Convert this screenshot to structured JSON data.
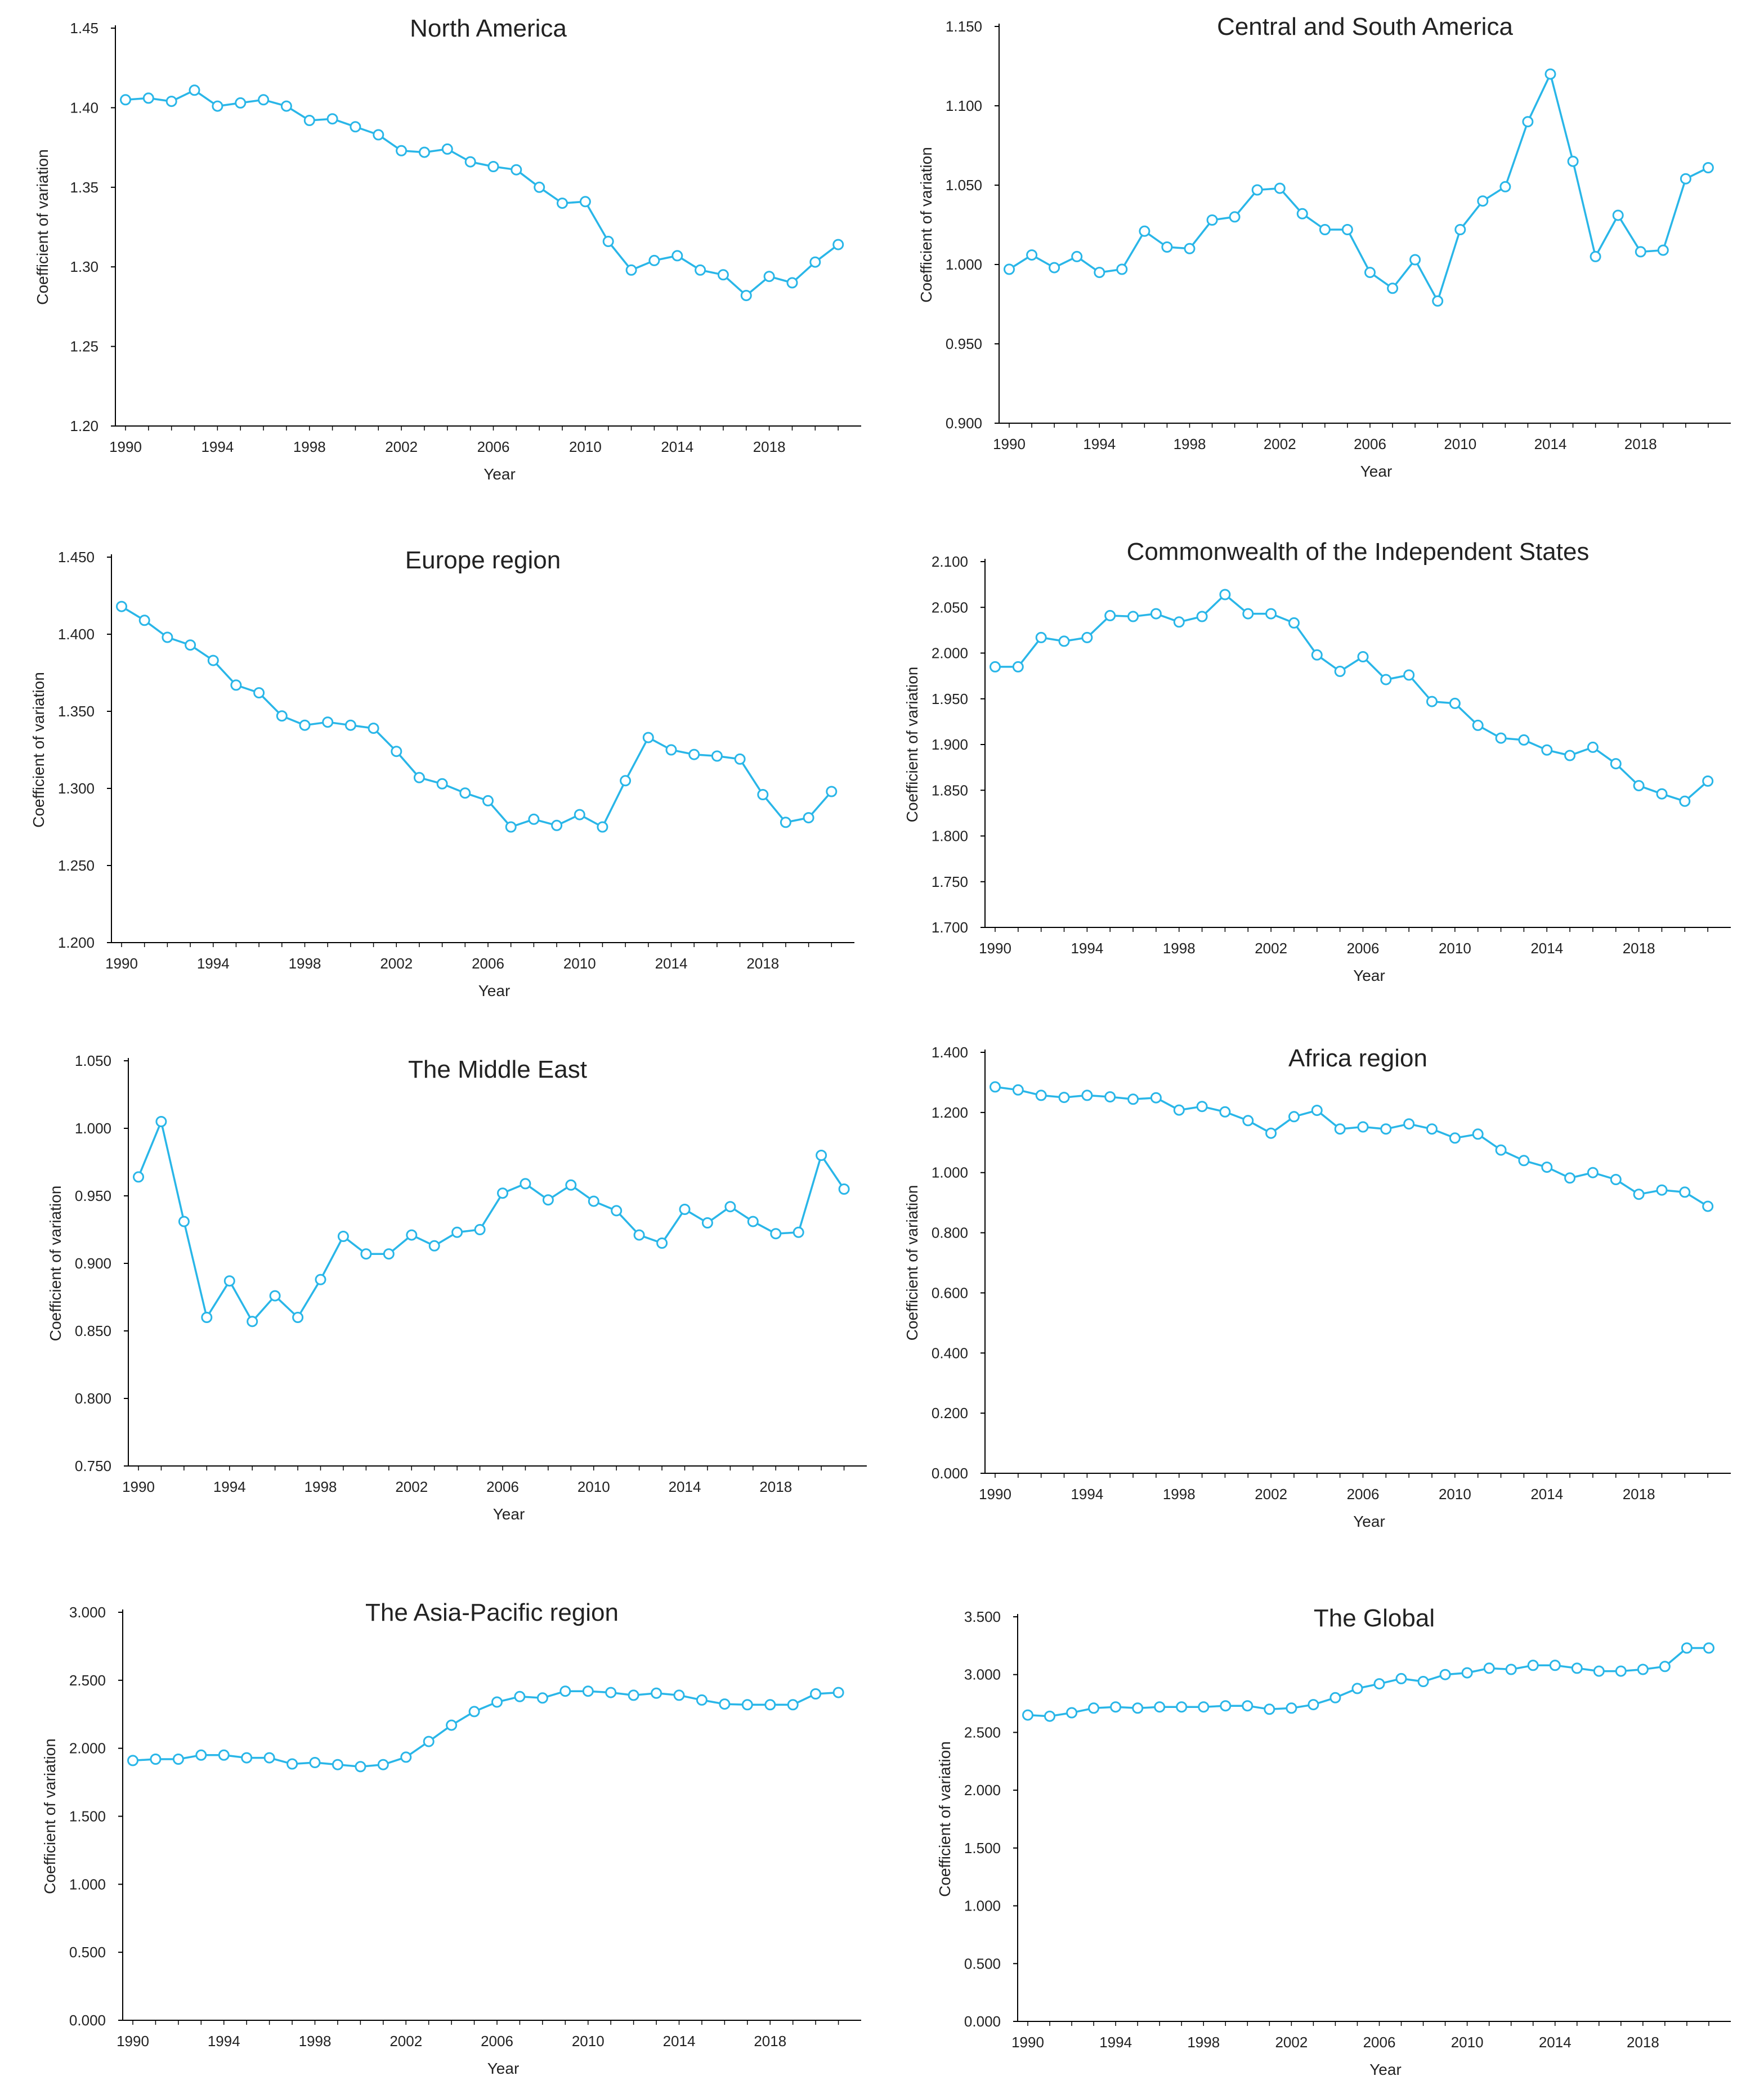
{
  "colors": {
    "series": "#29b6e8",
    "axis": "#000000",
    "text": "#222222"
  },
  "chart_data": [
    {
      "type": "line",
      "title": "North America",
      "xlabel": "Year",
      "ylabel": "Coefficient of variation",
      "ylim": [
        1.2,
        1.45
      ],
      "yticks": [
        "1.20",
        "1.25",
        "1.30",
        "1.35",
        "1.40",
        "1.45"
      ],
      "xticks": [
        "1990",
        "1994",
        "1998",
        "2002",
        "2006",
        "2010",
        "2014",
        "2018"
      ],
      "x": [
        1990,
        1991,
        1992,
        1993,
        1994,
        1995,
        1996,
        1997,
        1998,
        1999,
        2000,
        2001,
        2002,
        2003,
        2004,
        2005,
        2006,
        2007,
        2008,
        2009,
        2010,
        2011,
        2012,
        2013,
        2014,
        2015,
        2016,
        2017,
        2018,
        2019,
        2020,
        2021
      ],
      "values": [
        1.405,
        1.406,
        1.404,
        1.411,
        1.401,
        1.403,
        1.405,
        1.401,
        1.392,
        1.393,
        1.388,
        1.383,
        1.373,
        1.372,
        1.374,
        1.366,
        1.363,
        1.361,
        1.35,
        1.34,
        1.341,
        1.316,
        1.298,
        1.304,
        1.307,
        1.298,
        1.295,
        1.282,
        1.294,
        1.29,
        1.303,
        1.314
      ]
    },
    {
      "type": "line",
      "title": "Central and South America",
      "xlabel": "Year",
      "ylabel": "Coefficient of variation",
      "ylim": [
        0.9,
        1.15
      ],
      "yticks": [
        "0.900",
        "0.950",
        "1.000",
        "1.050",
        "1.100",
        "1.150"
      ],
      "xticks": [
        "1990",
        "1994",
        "1998",
        "2002",
        "2006",
        "2010",
        "2014",
        "2018"
      ],
      "x": [
        1990,
        1991,
        1992,
        1993,
        1994,
        1995,
        1996,
        1997,
        1998,
        1999,
        2000,
        2001,
        2002,
        2003,
        2004,
        2005,
        2006,
        2007,
        2008,
        2009,
        2010,
        2011,
        2012,
        2013,
        2014,
        2015,
        2016,
        2017,
        2018,
        2019,
        2020,
        2021
      ],
      "values": [
        0.997,
        1.006,
        0.998,
        1.005,
        0.995,
        0.997,
        1.021,
        1.011,
        1.01,
        1.028,
        1.03,
        1.047,
        1.048,
        1.032,
        1.022,
        1.022,
        0.995,
        0.985,
        1.003,
        0.977,
        1.022,
        1.04,
        1.049,
        1.09,
        1.12,
        1.065,
        1.005,
        1.031,
        1.008,
        1.009,
        1.054,
        1.061
      ]
    },
    {
      "type": "line",
      "title": "Europe region",
      "xlabel": "Year",
      "ylabel": "Coefficient of variation",
      "ylim": [
        1.2,
        1.45
      ],
      "yticks": [
        "1.200",
        "1.250",
        "1.300",
        "1.350",
        "1.400",
        "1.450"
      ],
      "xticks": [
        "1990",
        "1994",
        "1998",
        "2002",
        "2006",
        "2010",
        "2014",
        "2018"
      ],
      "x": [
        1990,
        1991,
        1992,
        1993,
        1994,
        1995,
        1996,
        1997,
        1998,
        1999,
        2000,
        2001,
        2002,
        2003,
        2004,
        2005,
        2006,
        2007,
        2008,
        2009,
        2010,
        2011,
        2012,
        2013,
        2014,
        2015,
        2016,
        2017,
        2018,
        2019,
        2020,
        2021
      ],
      "values": [
        1.418,
        1.409,
        1.398,
        1.393,
        1.383,
        1.367,
        1.362,
        1.347,
        1.341,
        1.343,
        1.341,
        1.339,
        1.324,
        1.307,
        1.303,
        1.297,
        1.292,
        1.275,
        1.28,
        1.276,
        1.283,
        1.275,
        1.305,
        1.333,
        1.325,
        1.322,
        1.321,
        1.319,
        1.296,
        1.278,
        1.281,
        1.298
      ]
    },
    {
      "type": "line",
      "title": "Commonwealth of the Independent States",
      "xlabel": "Year",
      "ylabel": "Coefficient of variation",
      "ylim": [
        1.7,
        2.1
      ],
      "yticks": [
        "1.700",
        "1.750",
        "1.800",
        "1.850",
        "1.900",
        "1.950",
        "2.000",
        "2.050",
        "2.100"
      ],
      "xticks": [
        "1990",
        "1994",
        "1998",
        "2002",
        "2006",
        "2010",
        "2014",
        "2018"
      ],
      "x": [
        1990,
        1991,
        1992,
        1993,
        1994,
        1995,
        1996,
        1997,
        1998,
        1999,
        2000,
        2001,
        2002,
        2003,
        2004,
        2005,
        2006,
        2007,
        2008,
        2009,
        2010,
        2011,
        2012,
        2013,
        2014,
        2015,
        2016,
        2017,
        2018,
        2019,
        2020,
        2021
      ],
      "values": [
        1.985,
        1.985,
        2.017,
        2.013,
        2.017,
        2.041,
        2.04,
        2.043,
        2.034,
        2.04,
        2.064,
        2.043,
        2.043,
        2.033,
        1.998,
        1.98,
        1.996,
        1.971,
        1.976,
        1.947,
        1.945,
        1.921,
        1.907,
        1.905,
        1.894,
        1.888,
        1.897,
        1.879,
        1.855,
        1.846,
        1.838,
        1.86
      ]
    },
    {
      "type": "line",
      "title": "The Middle East",
      "xlabel": "Year",
      "ylabel": "Coefficient of variation",
      "ylim": [
        0.75,
        1.05
      ],
      "yticks": [
        "0.750",
        "0.800",
        "0.850",
        "0.900",
        "0.950",
        "1.000",
        "1.050"
      ],
      "xticks": [
        "1990",
        "1994",
        "1998",
        "2002",
        "2006",
        "2010",
        "2014",
        "2018"
      ],
      "x": [
        1990,
        1991,
        1992,
        1993,
        1994,
        1995,
        1996,
        1997,
        1998,
        1999,
        2000,
        2001,
        2002,
        2003,
        2004,
        2005,
        2006,
        2007,
        2008,
        2009,
        2010,
        2011,
        2012,
        2013,
        2014,
        2015,
        2016,
        2017,
        2018,
        2019,
        2020,
        2021
      ],
      "values": [
        0.964,
        1.005,
        0.931,
        0.86,
        0.887,
        0.857,
        0.876,
        0.86,
        0.888,
        0.92,
        0.907,
        0.907,
        0.921,
        0.913,
        0.923,
        0.925,
        0.952,
        0.959,
        0.947,
        0.958,
        0.946,
        0.939,
        0.921,
        0.915,
        0.94,
        0.93,
        0.942,
        0.931,
        0.922,
        0.923,
        0.98,
        0.955
      ]
    },
    {
      "type": "line",
      "title": "Africa region",
      "xlabel": "Year",
      "ylabel": "Coefficient of variation",
      "ylim": [
        0.0,
        1.4
      ],
      "yticks": [
        "0.000",
        "0.200",
        "0.400",
        "0.600",
        "0.800",
        "1.000",
        "1.200",
        "1.400"
      ],
      "xticks": [
        "1990",
        "1994",
        "1998",
        "2002",
        "2006",
        "2010",
        "2014",
        "2018"
      ],
      "x": [
        1990,
        1991,
        1992,
        1993,
        1994,
        1995,
        1996,
        1997,
        1998,
        1999,
        2000,
        2001,
        2002,
        2003,
        2004,
        2005,
        2006,
        2007,
        2008,
        2009,
        2010,
        2011,
        2012,
        2013,
        2014,
        2015,
        2016,
        2017,
        2018,
        2019,
        2020,
        2021
      ],
      "values": [
        1.285,
        1.275,
        1.257,
        1.25,
        1.257,
        1.252,
        1.244,
        1.249,
        1.208,
        1.22,
        1.202,
        1.173,
        1.131,
        1.186,
        1.207,
        1.145,
        1.152,
        1.145,
        1.162,
        1.145,
        1.115,
        1.128,
        1.075,
        1.04,
        1.018,
        0.982,
        1.0,
        0.977,
        0.928,
        0.942,
        0.935,
        0.888
      ]
    },
    {
      "type": "line",
      "title": "The Asia-Pacific region",
      "xlabel": "Year",
      "ylabel": "Coefficient of variation",
      "ylim": [
        0.0,
        3.0
      ],
      "yticks": [
        "0.000",
        "0.500",
        "1.000",
        "1.500",
        "2.000",
        "2.500",
        "3.000"
      ],
      "xticks": [
        "1990",
        "1994",
        "1998",
        "2002",
        "2006",
        "2010",
        "2014",
        "2018"
      ],
      "x": [
        1990,
        1991,
        1992,
        1993,
        1994,
        1995,
        1996,
        1997,
        1998,
        1999,
        2000,
        2001,
        2002,
        2003,
        2004,
        2005,
        2006,
        2007,
        2008,
        2009,
        2010,
        2011,
        2012,
        2013,
        2014,
        2015,
        2016,
        2017,
        2018,
        2019,
        2020,
        2021
      ],
      "values": [
        1.91,
        1.92,
        1.92,
        1.95,
        1.95,
        1.93,
        1.93,
        1.885,
        1.895,
        1.88,
        1.865,
        1.88,
        1.935,
        2.05,
        2.17,
        2.27,
        2.34,
        2.38,
        2.37,
        2.42,
        2.42,
        2.41,
        2.39,
        2.405,
        2.39,
        2.355,
        2.325,
        2.32,
        2.32,
        2.32,
        2.4,
        2.41
      ]
    },
    {
      "type": "line",
      "title": "The Global",
      "xlabel": "Year",
      "ylabel": "Coefficient of variation",
      "ylim": [
        0.0,
        3.5
      ],
      "yticks": [
        "0.000",
        "0.500",
        "1.000",
        "1.500",
        "2.000",
        "2.500",
        "3.000",
        "3.500"
      ],
      "xticks": [
        "1990",
        "1994",
        "1998",
        "2002",
        "2006",
        "2010",
        "2014",
        "2018"
      ],
      "x": [
        1990,
        1991,
        1992,
        1993,
        1994,
        1995,
        1996,
        1997,
        1998,
        1999,
        2000,
        2001,
        2002,
        2003,
        2004,
        2005,
        2006,
        2007,
        2008,
        2009,
        2010,
        2011,
        2012,
        2013,
        2014,
        2015,
        2016,
        2017,
        2018,
        2019,
        2020,
        2021
      ],
      "values": [
        2.65,
        2.64,
        2.67,
        2.71,
        2.72,
        2.71,
        2.72,
        2.72,
        2.72,
        2.73,
        2.73,
        2.7,
        2.71,
        2.74,
        2.8,
        2.88,
        2.92,
        2.965,
        2.94,
        3.0,
        3.015,
        3.055,
        3.045,
        3.08,
        3.08,
        3.055,
        3.03,
        3.03,
        3.045,
        3.07,
        3.23,
        3.23
      ]
    }
  ]
}
